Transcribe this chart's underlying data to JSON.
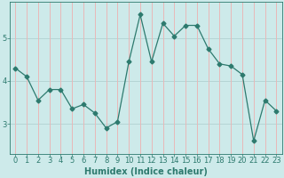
{
  "xlabel": "Humidex (Indice chaleur)",
  "x": [
    0,
    1,
    2,
    3,
    4,
    5,
    6,
    7,
    8,
    9,
    10,
    11,
    12,
    13,
    14,
    15,
    16,
    17,
    18,
    19,
    20,
    21,
    22,
    23
  ],
  "y": [
    4.3,
    4.1,
    3.55,
    3.8,
    3.8,
    3.35,
    3.45,
    3.25,
    2.9,
    3.05,
    4.45,
    5.55,
    4.45,
    5.35,
    5.05,
    5.3,
    5.3,
    4.75,
    4.4,
    4.35,
    4.15,
    2.6,
    3.55,
    3.3
  ],
  "line_color": "#2d7a6e",
  "marker": "D",
  "marker_size": 2.5,
  "bg_color": "#cdeaea",
  "grid_color_h": "#b5d5d5",
  "grid_color_v": "#e8b8b8",
  "axis_color": "#2d7a6e",
  "tick_label_color": "#2d7a6e",
  "xlabel_color": "#2d7a6e",
  "ylim": [
    2.3,
    5.85
  ],
  "xlim": [
    -0.5,
    23.5
  ],
  "yticks": [
    3,
    4,
    5
  ],
  "xticks": [
    0,
    1,
    2,
    3,
    4,
    5,
    6,
    7,
    8,
    9,
    10,
    11,
    12,
    13,
    14,
    15,
    16,
    17,
    18,
    19,
    20,
    21,
    22,
    23
  ],
  "xlabel_fontsize": 7,
  "tick_fontsize": 6
}
